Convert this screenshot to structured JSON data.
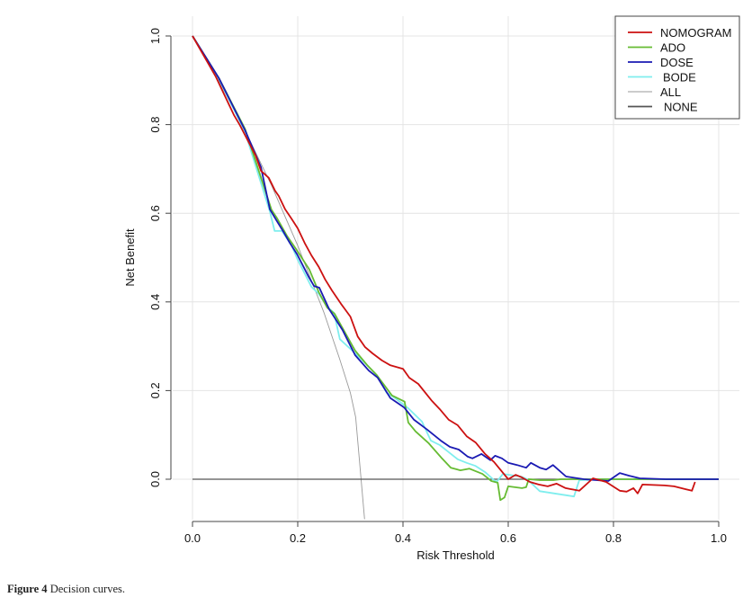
{
  "caption": {
    "label": "Figure 4",
    "text": " Decision curves."
  },
  "chart_data": {
    "type": "line",
    "title": "",
    "xlabel": "Risk Threshold",
    "ylabel": "Net Benefit",
    "xlim": [
      0.0,
      1.0
    ],
    "ylim": [
      -0.09,
      1.0
    ],
    "xticks": [
      0.0,
      0.2,
      0.4,
      0.6,
      0.8,
      1.0
    ],
    "xtick_labels": [
      "0.0",
      "0.2",
      "0.4",
      "0.6",
      "0.8",
      "1.0"
    ],
    "yticks": [
      0.0,
      0.2,
      0.4,
      0.6,
      0.8,
      1.0
    ],
    "ytick_labels": [
      "0.0",
      "0.2",
      "0.4",
      "0.6",
      "0.8",
      "1.0"
    ],
    "grid": true,
    "legend_position": "top-right",
    "series": [
      {
        "name": "NOMOGRAM",
        "color": "#cc1111",
        "points": [
          [
            0.0,
            1.0
          ],
          [
            0.044,
            0.909
          ],
          [
            0.079,
            0.821
          ],
          [
            0.09,
            0.799
          ],
          [
            0.12,
            0.73
          ],
          [
            0.13,
            0.696
          ],
          [
            0.145,
            0.68
          ],
          [
            0.157,
            0.651
          ],
          [
            0.164,
            0.639
          ],
          [
            0.176,
            0.609
          ],
          [
            0.188,
            0.588
          ],
          [
            0.2,
            0.566
          ],
          [
            0.214,
            0.531
          ],
          [
            0.226,
            0.505
          ],
          [
            0.24,
            0.479
          ],
          [
            0.252,
            0.451
          ],
          [
            0.265,
            0.426
          ],
          [
            0.282,
            0.396
          ],
          [
            0.3,
            0.367
          ],
          [
            0.314,
            0.322
          ],
          [
            0.328,
            0.298
          ],
          [
            0.342,
            0.284
          ],
          [
            0.36,
            0.268
          ],
          [
            0.376,
            0.257
          ],
          [
            0.4,
            0.249
          ],
          [
            0.412,
            0.229
          ],
          [
            0.429,
            0.215
          ],
          [
            0.454,
            0.178
          ],
          [
            0.47,
            0.158
          ],
          [
            0.487,
            0.134
          ],
          [
            0.504,
            0.122
          ],
          [
            0.521,
            0.097
          ],
          [
            0.538,
            0.083
          ],
          [
            0.556,
            0.057
          ],
          [
            0.573,
            0.039
          ],
          [
            0.6,
            0.0
          ],
          [
            0.614,
            0.01
          ],
          [
            0.626,
            0.004
          ],
          [
            0.641,
            -0.006
          ],
          [
            0.658,
            -0.012
          ],
          [
            0.675,
            -0.016
          ],
          [
            0.692,
            -0.01
          ],
          [
            0.709,
            -0.02
          ],
          [
            0.735,
            -0.026
          ],
          [
            0.761,
            0.002
          ],
          [
            0.786,
            -0.006
          ],
          [
            0.812,
            -0.026
          ],
          [
            0.825,
            -0.028
          ],
          [
            0.838,
            -0.02
          ],
          [
            0.846,
            -0.032
          ],
          [
            0.855,
            -0.012
          ],
          [
            0.897,
            -0.014
          ],
          [
            0.915,
            -0.016
          ],
          [
            0.949,
            -0.026
          ],
          [
            0.955,
            -0.006
          ]
        ]
      },
      {
        "name": "ADO",
        "color": "#66bb33",
        "points": [
          [
            0.0,
            1.0
          ],
          [
            0.05,
            0.905
          ],
          [
            0.1,
            0.79
          ],
          [
            0.15,
            0.608
          ],
          [
            0.16,
            0.59
          ],
          [
            0.18,
            0.548
          ],
          [
            0.197,
            0.519
          ],
          [
            0.222,
            0.473
          ],
          [
            0.24,
            0.422
          ],
          [
            0.256,
            0.387
          ],
          [
            0.27,
            0.373
          ],
          [
            0.309,
            0.29
          ],
          [
            0.333,
            0.256
          ],
          [
            0.35,
            0.235
          ],
          [
            0.379,
            0.189
          ],
          [
            0.403,
            0.175
          ],
          [
            0.41,
            0.128
          ],
          [
            0.424,
            0.108
          ],
          [
            0.449,
            0.081
          ],
          [
            0.474,
            0.047
          ],
          [
            0.491,
            0.026
          ],
          [
            0.509,
            0.02
          ],
          [
            0.526,
            0.024
          ],
          [
            0.551,
            0.012
          ],
          [
            0.568,
            -0.004
          ],
          [
            0.58,
            -0.008
          ],
          [
            0.585,
            -0.047
          ],
          [
            0.593,
            -0.041
          ],
          [
            0.6,
            -0.016
          ],
          [
            0.626,
            -0.02
          ],
          [
            0.634,
            -0.018
          ],
          [
            0.639,
            0.0
          ],
          [
            0.66,
            -0.002
          ],
          [
            0.686,
            -0.002
          ],
          [
            0.7,
            0.0
          ],
          [
            1.0,
            0.0
          ]
        ]
      },
      {
        "name": "DOSE",
        "color": "#1a1ab3",
        "points": [
          [
            0.0,
            1.0
          ],
          [
            0.05,
            0.905
          ],
          [
            0.1,
            0.787
          ],
          [
            0.13,
            0.704
          ],
          [
            0.147,
            0.609
          ],
          [
            0.16,
            0.583
          ],
          [
            0.173,
            0.558
          ],
          [
            0.185,
            0.533
          ],
          [
            0.199,
            0.507
          ],
          [
            0.221,
            0.456
          ],
          [
            0.231,
            0.436
          ],
          [
            0.241,
            0.432
          ],
          [
            0.26,
            0.383
          ],
          [
            0.285,
            0.337
          ],
          [
            0.309,
            0.28
          ],
          [
            0.335,
            0.245
          ],
          [
            0.352,
            0.229
          ],
          [
            0.376,
            0.183
          ],
          [
            0.402,
            0.162
          ],
          [
            0.421,
            0.134
          ],
          [
            0.446,
            0.112
          ],
          [
            0.472,
            0.087
          ],
          [
            0.489,
            0.073
          ],
          [
            0.506,
            0.067
          ],
          [
            0.523,
            0.051
          ],
          [
            0.532,
            0.047
          ],
          [
            0.549,
            0.057
          ],
          [
            0.566,
            0.043
          ],
          [
            0.575,
            0.053
          ],
          [
            0.588,
            0.047
          ],
          [
            0.6,
            0.037
          ],
          [
            0.617,
            0.032
          ],
          [
            0.634,
            0.026
          ],
          [
            0.643,
            0.037
          ],
          [
            0.66,
            0.026
          ],
          [
            0.672,
            0.022
          ],
          [
            0.685,
            0.032
          ],
          [
            0.71,
            0.006
          ],
          [
            0.744,
            0.0
          ],
          [
            0.79,
            -0.004
          ],
          [
            0.812,
            0.014
          ],
          [
            0.83,
            0.008
          ],
          [
            0.85,
            0.002
          ],
          [
            0.9,
            0.0
          ],
          [
            1.0,
            0.0
          ]
        ]
      },
      {
        "name": "BODE",
        "color": "#7feeee",
        "points": [
          [
            0.0,
            1.0
          ],
          [
            0.05,
            0.903
          ],
          [
            0.1,
            0.783
          ],
          [
            0.147,
            0.604
          ],
          [
            0.156,
            0.56
          ],
          [
            0.17,
            0.56
          ],
          [
            0.188,
            0.528
          ],
          [
            0.2,
            0.495
          ],
          [
            0.226,
            0.434
          ],
          [
            0.24,
            0.418
          ],
          [
            0.256,
            0.389
          ],
          [
            0.269,
            0.375
          ],
          [
            0.28,
            0.316
          ],
          [
            0.318,
            0.274
          ],
          [
            0.35,
            0.235
          ],
          [
            0.369,
            0.195
          ],
          [
            0.385,
            0.183
          ],
          [
            0.41,
            0.16
          ],
          [
            0.436,
            0.13
          ],
          [
            0.453,
            0.087
          ],
          [
            0.47,
            0.077
          ],
          [
            0.487,
            0.061
          ],
          [
            0.504,
            0.045
          ],
          [
            0.521,
            0.037
          ],
          [
            0.538,
            0.03
          ],
          [
            0.556,
            0.016
          ],
          [
            0.573,
            -0.002
          ],
          [
            0.578,
            -0.006
          ],
          [
            0.59,
            0.012
          ],
          [
            0.624,
            0.006
          ],
          [
            0.636,
            0.0
          ],
          [
            0.66,
            -0.027
          ],
          [
            0.714,
            -0.037
          ],
          [
            0.725,
            -0.039
          ],
          [
            0.735,
            -0.002
          ],
          [
            0.8,
            0.0
          ],
          [
            1.0,
            0.0
          ]
        ]
      },
      {
        "name": "ALL",
        "color": "#999999",
        "points": [
          [
            0.0,
            1.0
          ],
          [
            0.05,
            0.898
          ],
          [
            0.1,
            0.786
          ],
          [
            0.15,
            0.663
          ],
          [
            0.2,
            0.527
          ],
          [
            0.25,
            0.375
          ],
          [
            0.28,
            0.27
          ],
          [
            0.3,
            0.195
          ],
          [
            0.31,
            0.14
          ],
          [
            0.3,
            0.195
          ],
          [
            0.31,
            0.0
          ],
          [
            0.327,
            -0.09
          ]
        ]
      },
      {
        "name": "NONE",
        "color": "#555555",
        "points": [
          [
            0.0,
            0.0
          ],
          [
            1.0,
            0.0
          ]
        ]
      }
    ]
  }
}
